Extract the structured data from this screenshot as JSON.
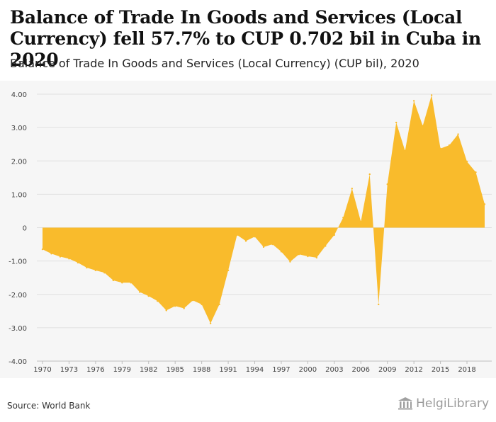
{
  "title": "Balance of Trade In Goods and Services (Local Currency) fell 57.7% to CUP 0.702 bil in Cuba in 2020",
  "subtitle": "Balance of Trade In Goods and Services (Local Currency) (CUP bil), 2020",
  "source": "Source: World Bank",
  "logo_text": "HelgiLibrary",
  "colors": {
    "area": "#f9bb2c",
    "grid": "#e0e0e0",
    "panel": "#f6f6f6",
    "axis_text": "#444444"
  },
  "chart_data": {
    "type": "area",
    "title": "Balance of Trade In Goods and Services (Local Currency) fell 57.7% to CUP 0.702 bil in Cuba in 2020",
    "subtitle": "Balance of Trade In Goods and Services (Local Currency) (CUP bil), 2020",
    "xlabel": "",
    "ylabel": "",
    "ylim": [
      -4,
      4
    ],
    "yticks": [
      4,
      3,
      2,
      1,
      0,
      -1,
      -2,
      -3,
      -4
    ],
    "ytick_labels": [
      "4.00",
      "3.00",
      "2.00",
      "1.00",
      "0",
      "-1.00",
      "-2.00",
      "-3.00",
      "-4.00"
    ],
    "xticks": [
      1970,
      1973,
      1976,
      1979,
      1982,
      1985,
      1988,
      1991,
      1994,
      1997,
      2000,
      2003,
      2006,
      2009,
      2012,
      2015,
      2018
    ],
    "grid": true,
    "legend": "none",
    "x": [
      1970,
      1971,
      1972,
      1973,
      1974,
      1975,
      1976,
      1977,
      1978,
      1979,
      1980,
      1981,
      1982,
      1983,
      1984,
      1985,
      1986,
      1987,
      1988,
      1989,
      1990,
      1991,
      1992,
      1993,
      1994,
      1995,
      1996,
      1997,
      1998,
      1999,
      2000,
      2001,
      2002,
      2003,
      2004,
      2005,
      2006,
      2007,
      2008,
      2009,
      2010,
      2011,
      2012,
      2013,
      2014,
      2015,
      2016,
      2017,
      2018,
      2019,
      2020
    ],
    "series": [
      {
        "values": [
          -0.65,
          -0.78,
          -0.87,
          -0.93,
          -1.05,
          -1.2,
          -1.28,
          -1.35,
          -1.58,
          -1.65,
          -1.65,
          -1.93,
          -2.05,
          -2.2,
          -2.48,
          -2.35,
          -2.42,
          -2.18,
          -2.3,
          -2.87,
          -2.3,
          -1.28,
          -0.22,
          -0.4,
          -0.27,
          -0.58,
          -0.5,
          -0.72,
          -1.02,
          -0.8,
          -0.86,
          -0.9,
          -0.55,
          -0.22,
          0.3,
          1.17,
          0.18,
          1.6,
          -2.3,
          1.3,
          3.15,
          2.3,
          3.8,
          3.05,
          3.97,
          2.37,
          2.47,
          2.8,
          1.98,
          1.66,
          0.702
        ]
      }
    ]
  }
}
